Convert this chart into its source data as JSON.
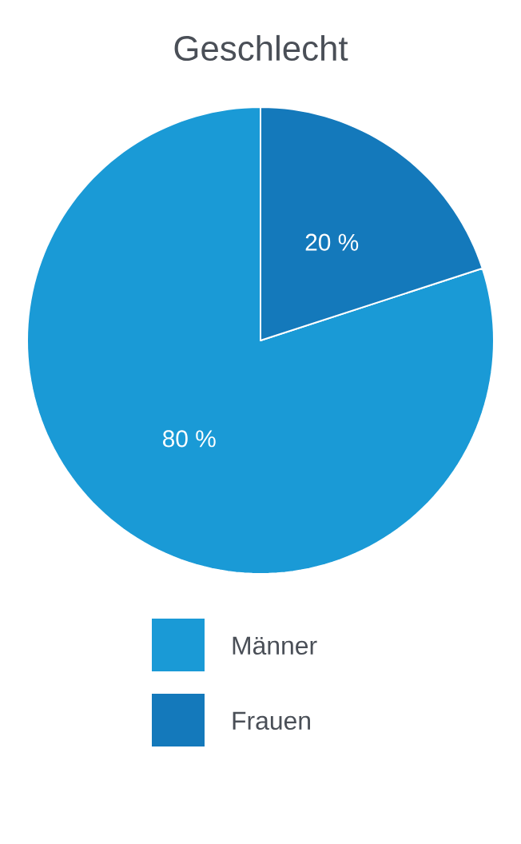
{
  "chart_data": {
    "type": "pie",
    "title": "Geschlecht",
    "categories": [
      "Männer",
      "Frauen"
    ],
    "values": [
      80,
      20
    ],
    "colors": [
      "#1a9ad6",
      "#1479bb"
    ],
    "value_labels": [
      "80 %",
      "20 %"
    ],
    "legend": "bottom"
  }
}
